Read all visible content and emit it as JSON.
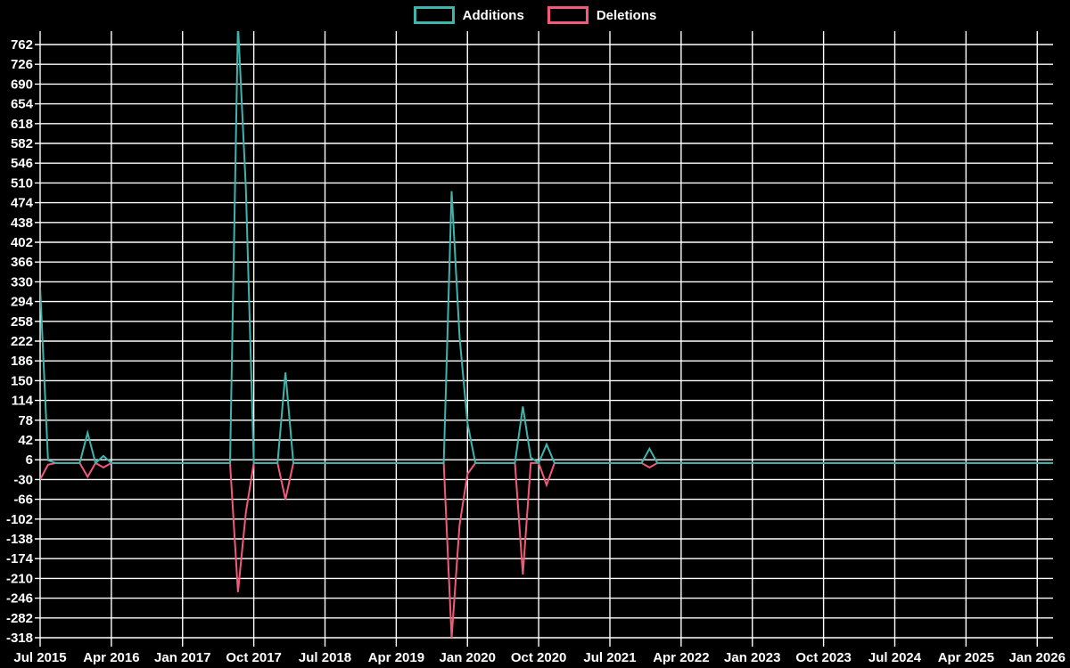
{
  "legend": {
    "items": [
      {
        "label": "Additions",
        "color": "#3cb5ad"
      },
      {
        "label": "Deletions",
        "color": "#f4587b"
      }
    ]
  },
  "colors": {
    "background": "#000000",
    "grid": "#ffffff",
    "text": "#ffffff"
  },
  "chart_data": {
    "type": "line",
    "title": "",
    "xlabel": "",
    "ylabel": "",
    "grid": true,
    "legend_position": "top-center",
    "x_axis": {
      "kind": "time-monthly",
      "start_month": "2015-07",
      "end_month": "2026-03",
      "tick_interval_months": 9,
      "tick_labels": [
        "Jul 2015",
        "Apr 2016",
        "Jan 2017",
        "Oct 2017",
        "Jul 2018",
        "Apr 2019",
        "Jan 2020",
        "Oct 2020",
        "Jul 2021",
        "Apr 2022",
        "Jan 2023",
        "Oct 2023",
        "Jul 2024",
        "Apr 2025",
        "Jan 2026"
      ]
    },
    "y_axis": {
      "min": -318,
      "max": 762,
      "step": 36,
      "tick_labels": [
        "762",
        "726",
        "690",
        "654",
        "618",
        "582",
        "546",
        "510",
        "474",
        "438",
        "402",
        "366",
        "330",
        "294",
        "258",
        "222",
        "186",
        "150",
        "114",
        "78",
        "42",
        "6",
        "-30",
        "-66",
        "-102",
        "-138",
        "-174",
        "-210",
        "-246",
        "-282",
        "-318"
      ]
    },
    "series": [
      {
        "name": "Additions",
        "color": "#3cb5ad",
        "default_value": 0,
        "points": {
          "2015-07": 320,
          "2015-08": 5,
          "2016-01": 55,
          "2016-03": 13,
          "2017-08": 800,
          "2017-09": 500,
          "2018-02": 165,
          "2019-11": 495,
          "2019-12": 230,
          "2020-01": 73,
          "2020-08": 103,
          "2020-09": 10,
          "2020-11": 34,
          "2021-12": 26
        }
      },
      {
        "name": "Deletions",
        "color": "#f4587b",
        "default_value": 0,
        "points": {
          "2015-07": -30,
          "2015-08": -3,
          "2016-01": -25,
          "2016-03": -8,
          "2017-08": -235,
          "2017-09": -90,
          "2018-02": -66,
          "2019-11": -318,
          "2019-12": -113,
          "2020-01": -20,
          "2020-08": -203,
          "2020-11": -40,
          "2021-12": -8
        }
      }
    ]
  }
}
